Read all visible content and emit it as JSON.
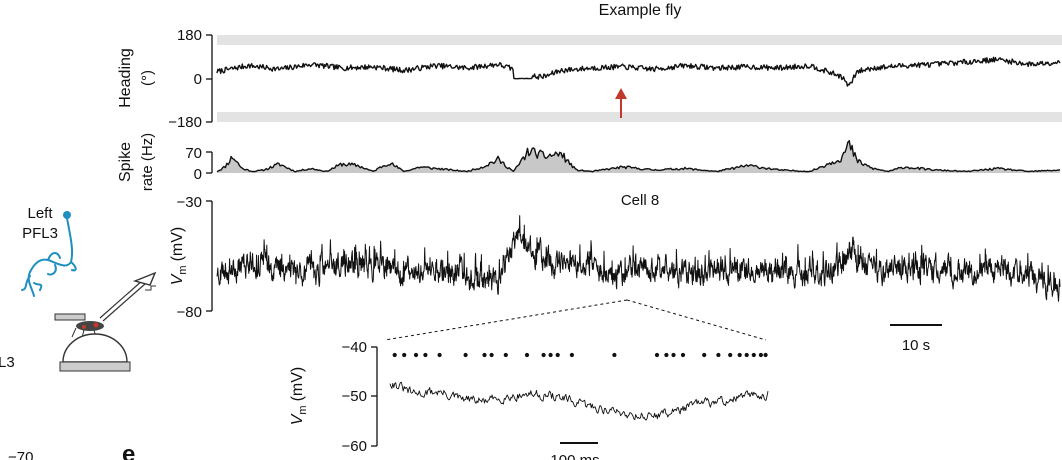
{
  "figure": {
    "title": "Example fly",
    "left_label_line1": "Left",
    "left_label_line2": "PFL3",
    "edge_label": "L3",
    "bottom_left_label": "−70",
    "panel_letter": "e",
    "colors": {
      "trace": "#111111",
      "band": "#e3e3e3",
      "fill": "#c8c8c8",
      "arrow": "#c0392b",
      "neuron": "#1f8fbf"
    }
  },
  "chart_data": [
    {
      "type": "line",
      "id": "heading",
      "ylabel": "Heading",
      "yunit": "(°)",
      "yticks": [
        "180",
        "0",
        "−180"
      ],
      "ylim": [
        -180,
        180
      ],
      "shaded_bands": [
        [
          140,
          180
        ],
        [
          -180,
          -140
        ]
      ],
      "x": [
        0,
        2,
        4,
        6,
        8,
        10,
        12,
        14,
        16,
        18,
        19,
        20,
        21,
        22,
        24,
        26,
        28,
        30,
        32,
        34,
        36,
        38,
        40,
        40.5,
        41,
        42,
        44,
        46,
        48,
        50,
        52,
        54
      ],
      "values": [
        30,
        55,
        40,
        60,
        45,
        50,
        35,
        55,
        45,
        60,
        40,
        10,
        10,
        35,
        45,
        50,
        40,
        55,
        45,
        50,
        45,
        55,
        10,
        -30,
        30,
        45,
        55,
        60,
        70,
        80,
        60,
        70
      ],
      "annotation": "arrow at the discontinuity near x ≈ 19 s"
    },
    {
      "type": "area",
      "id": "spike_rate",
      "ylabel_line1": "Spike",
      "ylabel_line2": "rate (Hz)",
      "yticks": [
        "70",
        "0"
      ],
      "ylim": [
        0,
        70
      ],
      "x": [
        0,
        0.5,
        1,
        1.6,
        2.3,
        3,
        4,
        5,
        6,
        7,
        8,
        9,
        10,
        11,
        12,
        13,
        14,
        15,
        16,
        17,
        18,
        19,
        20,
        21,
        22,
        23,
        24,
        26,
        28,
        30,
        32,
        34,
        36,
        38,
        40,
        40.5,
        41,
        42,
        43,
        44,
        46,
        48,
        50,
        52,
        54
      ],
      "values": [
        5,
        20,
        55,
        15,
        5,
        10,
        30,
        5,
        15,
        5,
        30,
        25,
        5,
        35,
        5,
        20,
        15,
        10,
        5,
        20,
        45,
        5,
        75,
        55,
        65,
        10,
        5,
        20,
        10,
        15,
        5,
        25,
        10,
        5,
        50,
        95,
        40,
        15,
        5,
        20,
        10,
        5,
        15,
        5,
        10
      ]
    },
    {
      "type": "line",
      "id": "membrane_potential",
      "title": "Cell 8",
      "ylabel": "V",
      "ylabel_sub": "m",
      "yunit": "(mV)",
      "yticks": [
        "−30",
        "−80"
      ],
      "ylim": [
        -80,
        -30
      ],
      "x": [
        0,
        2,
        4,
        6,
        8,
        10,
        12,
        14,
        16,
        18,
        19,
        20,
        22,
        24,
        26,
        28,
        30,
        32,
        34,
        36,
        38,
        40,
        40.5,
        41,
        42,
        44,
        46,
        48,
        50,
        52,
        54
      ],
      "values": [
        -62,
        -58,
        -60,
        -62,
        -59,
        -60,
        -63,
        -61,
        -64,
        -66,
        -48,
        -52,
        -60,
        -61,
        -62,
        -60,
        -63,
        -61,
        -62,
        -61,
        -63,
        -60,
        -52,
        -58,
        -62,
        -60,
        -61,
        -63,
        -60,
        -64,
        -70
      ],
      "scalebar": "10 s",
      "zoom_region": [
        18.5,
        20.5
      ]
    },
    {
      "type": "line",
      "id": "membrane_potential_zoom",
      "ylabel": "V",
      "ylabel_sub": "m",
      "yunit": "(mV)",
      "yticks": [
        "−40",
        "−50",
        "−60"
      ],
      "ylim": [
        -60,
        -40
      ],
      "x": [
        0,
        50,
        100,
        150,
        200,
        250,
        300,
        350,
        400,
        450,
        500,
        550,
        600,
        650,
        700,
        750,
        800
      ],
      "values": [
        -47,
        -49.5,
        -49,
        -50.5,
        -51,
        -50,
        -49.5,
        -50,
        -51.5,
        -52.5,
        -53.5,
        -54,
        -53,
        -51.5,
        -51,
        -50,
        -49.5
      ],
      "spike_times": [
        10,
        30,
        55,
        75,
        105,
        160,
        200,
        215,
        245,
        290,
        325,
        340,
        355,
        385,
        475,
        565,
        585,
        600,
        620,
        665,
        695,
        720,
        740,
        755,
        770,
        785,
        795
      ],
      "scalebar": "100 ms"
    }
  ]
}
